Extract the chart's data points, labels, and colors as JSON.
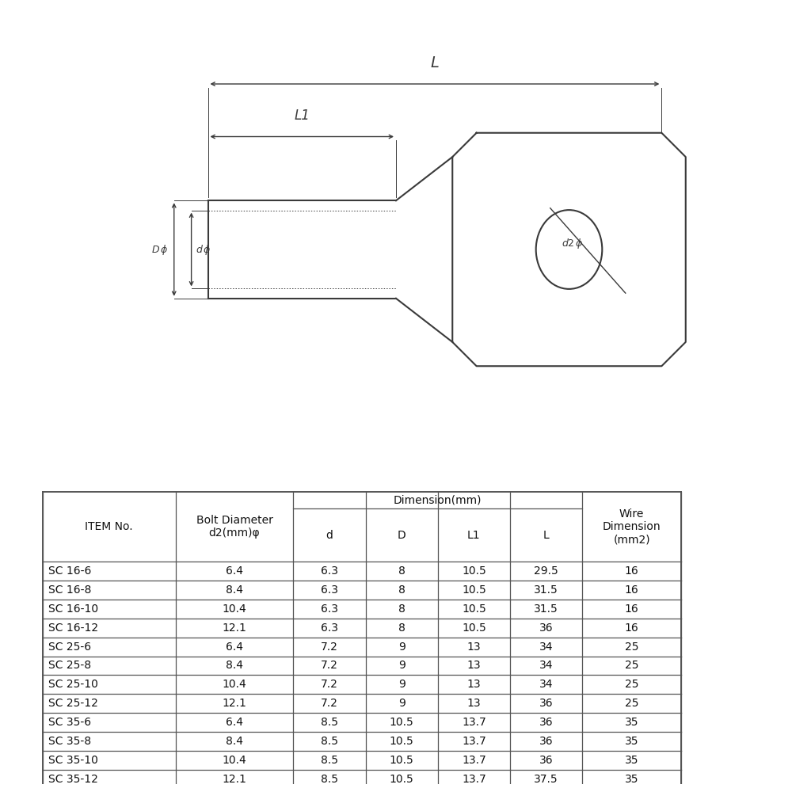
{
  "bg_color": "#ffffff",
  "rows": [
    [
      "SC 16-6",
      "6.4",
      "6.3",
      "8",
      "10.5",
      "29.5",
      "16"
    ],
    [
      "SC 16-8",
      "8.4",
      "6.3",
      "8",
      "10.5",
      "31.5",
      "16"
    ],
    [
      "SC 16-10",
      "10.4",
      "6.3",
      "8",
      "10.5",
      "31.5",
      "16"
    ],
    [
      "SC 16-12",
      "12.1",
      "6.3",
      "8",
      "10.5",
      "36",
      "16"
    ],
    [
      "SC 25-6",
      "6.4",
      "7.2",
      "9",
      "13",
      "34",
      "25"
    ],
    [
      "SC 25-8",
      "8.4",
      "7.2",
      "9",
      "13",
      "34",
      "25"
    ],
    [
      "SC 25-10",
      "10.4",
      "7.2",
      "9",
      "13",
      "34",
      "25"
    ],
    [
      "SC 25-12",
      "12.1",
      "7.2",
      "9",
      "13",
      "36",
      "25"
    ],
    [
      "SC 35-6",
      "6.4",
      "8.5",
      "10.5",
      "13.7",
      "36",
      "35"
    ],
    [
      "SC 35-8",
      "8.4",
      "8.5",
      "10.5",
      "13.7",
      "36",
      "35"
    ],
    [
      "SC 35-10",
      "10.4",
      "8.5",
      "10.5",
      "13.7",
      "36",
      "35"
    ],
    [
      "SC 35-12",
      "12.1",
      "8.5",
      "10.5",
      "13.7",
      "37.5",
      "35"
    ]
  ],
  "line_color": "#3a3a3a",
  "text_color": "#111111",
  "draw_lw": 1.5,
  "dim_lw": 1.0
}
